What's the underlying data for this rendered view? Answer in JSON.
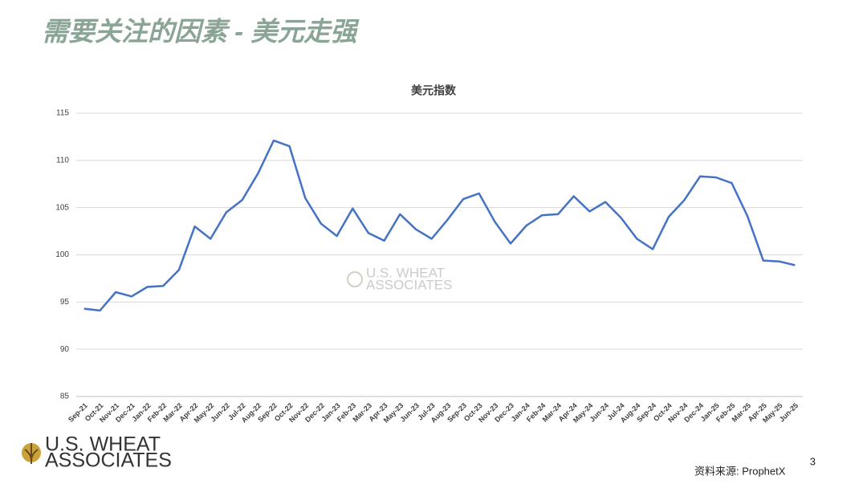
{
  "slide": {
    "title": "需要关注的因素 - 美元走强",
    "source": "资料来源: ProphetX",
    "page_number": 3,
    "logo": [
      "U.S. WHEAT",
      "ASSOCIATES"
    ]
  },
  "chart_data": {
    "type": "line",
    "title": "美元指数",
    "categories": [
      "Sep-21",
      "Oct-21",
      "Nov-21",
      "Dec-21",
      "Jan-22",
      "Feb-22",
      "Mar-22",
      "Apr-22",
      "May-22",
      "Jun-22",
      "Jul-22",
      "Aug-22",
      "Sep-22",
      "Oct-22",
      "Nov-22",
      "Dec-22",
      "Jan-23",
      "Feb-23",
      "Mar-23",
      "Apr-23",
      "May-23",
      "Jun-23",
      "Jul-23",
      "Aug-23",
      "Sep-23",
      "Oct-23",
      "Nov-23",
      "Dec-23",
      "Jan-24",
      "Feb-24",
      "Mar-24",
      "Apr-24",
      "May-24",
      "Jun-24",
      "Jul-24",
      "Aug-24",
      "Sep-24",
      "Oct-24",
      "Nov-24",
      "Dec-24",
      "Jan-25",
      "Feb-25",
      "Mar-25",
      "Apr-25",
      "May-25",
      "Jun-25"
    ],
    "values": [
      94.3,
      94.1,
      96.05,
      95.6,
      96.6,
      96.7,
      98.4,
      103.0,
      101.7,
      104.5,
      105.8,
      108.6,
      112.1,
      111.5,
      106.0,
      103.3,
      102.0,
      104.9,
      102.3,
      101.5,
      104.3,
      102.7,
      101.7,
      103.7,
      105.9,
      106.5,
      103.5,
      101.2,
      103.1,
      104.2,
      104.3,
      106.2,
      104.6,
      105.6,
      103.9,
      101.7,
      100.6,
      104.0,
      105.8,
      108.3,
      108.2,
      107.6,
      104.1,
      99.4,
      99.3,
      98.9
    ],
    "color": "#4472c4",
    "ylim": [
      85,
      115
    ],
    "yticks": [
      85,
      90,
      95,
      100,
      105,
      110,
      115
    ],
    "grid": true
  }
}
